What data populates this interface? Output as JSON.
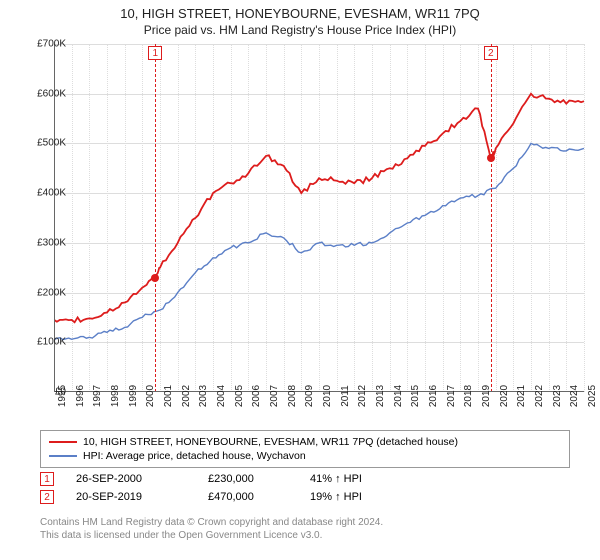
{
  "title": "10, HIGH STREET, HONEYBOURNE, EVESHAM, WR11 7PQ",
  "subtitle": "Price paid vs. HM Land Registry's House Price Index (HPI)",
  "chart": {
    "type": "line",
    "xlim": [
      1995,
      2025
    ],
    "ylim": [
      0,
      700000
    ],
    "ytick_step": 100000,
    "yticks": [
      0,
      100000,
      200000,
      300000,
      400000,
      500000,
      600000,
      700000
    ],
    "ytick_labels": [
      "£0",
      "£100K",
      "£200K",
      "£300K",
      "£400K",
      "£500K",
      "£600K",
      "£700K"
    ],
    "xticks": [
      1995,
      1996,
      1997,
      1998,
      1999,
      2000,
      2001,
      2002,
      2003,
      2004,
      2005,
      2006,
      2007,
      2008,
      2009,
      2010,
      2011,
      2012,
      2013,
      2014,
      2015,
      2016,
      2017,
      2018,
      2019,
      2020,
      2021,
      2022,
      2023,
      2024,
      2025
    ],
    "background_color": "#ffffff",
    "grid_color": "#dddddd",
    "axis_color": "#666666",
    "series": [
      {
        "name": "property_price",
        "color": "#dd1c1c",
        "width": 1.8,
        "x": [
          1995,
          1996,
          1997,
          1998,
          1999,
          2000,
          2000.73,
          2001,
          2002,
          2003,
          2004,
          2005,
          2006,
          2007,
          2008,
          2009,
          2010,
          2011,
          2012,
          2013,
          2014,
          2015,
          2016,
          2017,
          2018,
          2019,
          2019.72,
          2020,
          2021,
          2022,
          2023,
          2024,
          2025
        ],
        "y": [
          145000,
          145000,
          148000,
          160000,
          180000,
          210000,
          230000,
          250000,
          300000,
          350000,
          400000,
          420000,
          440000,
          475000,
          455000,
          400000,
          430000,
          425000,
          420000,
          430000,
          450000,
          470000,
          495000,
          520000,
          545000,
          570000,
          470000,
          490000,
          540000,
          600000,
          590000,
          580000,
          585000
        ]
      },
      {
        "name": "hpi",
        "color": "#5b7fc7",
        "width": 1.4,
        "x": [
          1995,
          1996,
          1997,
          1998,
          1999,
          2000,
          2001,
          2002,
          2003,
          2004,
          2005,
          2006,
          2007,
          2008,
          2009,
          2010,
          2011,
          2012,
          2013,
          2014,
          2015,
          2016,
          2017,
          2018,
          2019,
          2020,
          2021,
          2022,
          2023,
          2024,
          2025
        ],
        "y": [
          105000,
          106000,
          110000,
          120000,
          130000,
          150000,
          165000,
          200000,
          240000,
          270000,
          290000,
          300000,
          320000,
          310000,
          280000,
          300000,
          295000,
          295000,
          300000,
          320000,
          340000,
          355000,
          375000,
          390000,
          395000,
          410000,
          450000,
          500000,
          490000,
          485000,
          490000
        ]
      }
    ],
    "markers": [
      {
        "label": "1",
        "x": 2000.73,
        "y": 230000,
        "color": "#dd1c1c"
      },
      {
        "label": "2",
        "x": 2019.72,
        "y": 470000,
        "color": "#dd1c1c"
      }
    ]
  },
  "legend": {
    "items": [
      {
        "color": "#dd1c1c",
        "label": "10, HIGH STREET, HONEYBOURNE, EVESHAM, WR11 7PQ (detached house)"
      },
      {
        "color": "#5b7fc7",
        "label": "HPI: Average price, detached house, Wychavon"
      }
    ]
  },
  "transactions": [
    {
      "marker": "1",
      "color": "#dd1c1c",
      "date": "26-SEP-2000",
      "price": "£230,000",
      "pct": "41% ↑ HPI"
    },
    {
      "marker": "2",
      "color": "#dd1c1c",
      "date": "20-SEP-2019",
      "price": "£470,000",
      "pct": "19% ↑ HPI"
    }
  ],
  "footer_line1": "Contains HM Land Registry data © Crown copyright and database right 2024.",
  "footer_line2": "This data is licensed under the Open Government Licence v3.0."
}
